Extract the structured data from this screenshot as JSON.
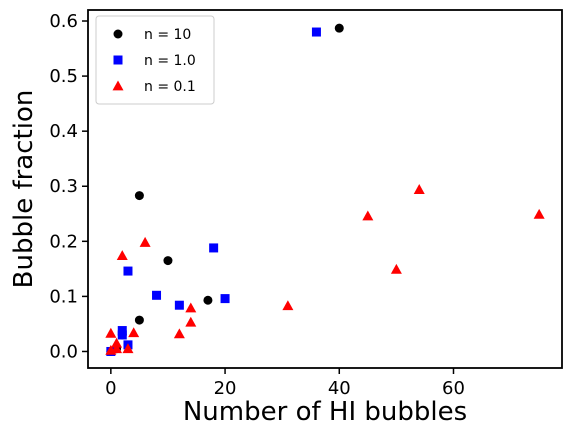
{
  "chart_data": {
    "type": "scatter",
    "title": "",
    "xlabel": "Number of HI bubbles",
    "ylabel": "Bubble fraction",
    "xlim": [
      -4,
      79
    ],
    "ylim": [
      -0.03,
      0.62
    ],
    "xticks": [
      0,
      20,
      40,
      60
    ],
    "yticks": [
      0.0,
      0.1,
      0.2,
      0.3,
      0.4,
      0.5,
      0.6
    ],
    "xtick_labels": [
      "0",
      "20",
      "40",
      "60"
    ],
    "ytick_labels": [
      "0.0",
      "0.1",
      "0.2",
      "0.3",
      "0.4",
      "0.5",
      "0.6"
    ],
    "grid": false,
    "legend_position": "top-left",
    "series": [
      {
        "name": "n = 10",
        "marker": "circle",
        "color": "#000000",
        "points": [
          {
            "x": 0,
            "y": 0.0
          },
          {
            "x": 1,
            "y": 0.005
          },
          {
            "x": 2,
            "y": 0.03
          },
          {
            "x": 5,
            "y": 0.057
          },
          {
            "x": 5,
            "y": 0.283
          },
          {
            "x": 10,
            "y": 0.165
          },
          {
            "x": 17,
            "y": 0.093
          },
          {
            "x": 40,
            "y": 0.587
          }
        ]
      },
      {
        "name": "n = 1.0",
        "marker": "square",
        "color": "#0000ff",
        "points": [
          {
            "x": 0,
            "y": 0.0
          },
          {
            "x": 2,
            "y": 0.03
          },
          {
            "x": 2,
            "y": 0.038
          },
          {
            "x": 3,
            "y": 0.012
          },
          {
            "x": 3,
            "y": 0.146
          },
          {
            "x": 8,
            "y": 0.102
          },
          {
            "x": 12,
            "y": 0.084
          },
          {
            "x": 18,
            "y": 0.188
          },
          {
            "x": 20,
            "y": 0.096
          },
          {
            "x": 36,
            "y": 0.58
          }
        ]
      },
      {
        "name": "n = 0.1",
        "marker": "triangle",
        "color": "#ff0000",
        "points": [
          {
            "x": 0,
            "y": 0.033
          },
          {
            "x": 0,
            "y": 0.002
          },
          {
            "x": 1,
            "y": 0.005
          },
          {
            "x": 1,
            "y": 0.015
          },
          {
            "x": 2,
            "y": 0.174
          },
          {
            "x": 3,
            "y": 0.005
          },
          {
            "x": 4,
            "y": 0.034
          },
          {
            "x": 6,
            "y": 0.198
          },
          {
            "x": 12,
            "y": 0.032
          },
          {
            "x": 14,
            "y": 0.053
          },
          {
            "x": 14,
            "y": 0.079
          },
          {
            "x": 31,
            "y": 0.083
          },
          {
            "x": 45,
            "y": 0.246
          },
          {
            "x": 50,
            "y": 0.149
          },
          {
            "x": 54,
            "y": 0.294
          },
          {
            "x": 75,
            "y": 0.249
          }
        ]
      }
    ]
  }
}
